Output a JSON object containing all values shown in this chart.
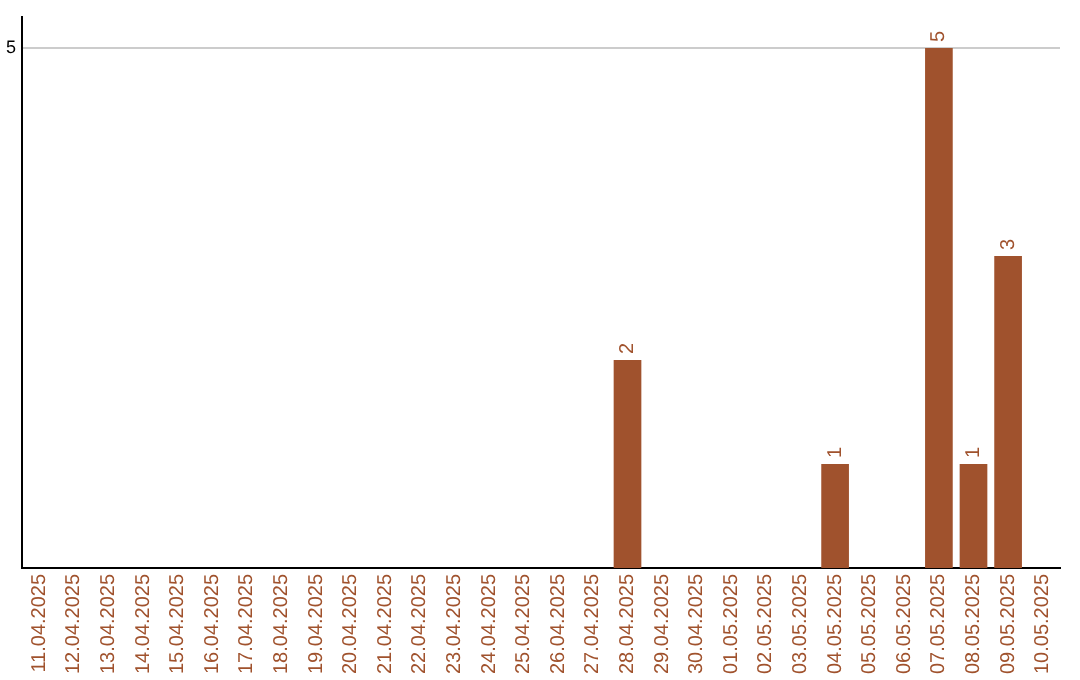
{
  "chart_data": {
    "type": "bar",
    "categories": [
      "11.04.2025",
      "12.04.2025",
      "13.04.2025",
      "14.04.2025",
      "15.04.2025",
      "16.04.2025",
      "17.04.2025",
      "18.04.2025",
      "19.04.2025",
      "20.04.2025",
      "21.04.2025",
      "22.04.2025",
      "23.04.2025",
      "24.04.2025",
      "25.04.2025",
      "26.04.2025",
      "27.04.2025",
      "28.04.2025",
      "29.04.2025",
      "30.04.2025",
      "01.05.2025",
      "02.05.2025",
      "03.05.2025",
      "04.05.2025",
      "05.05.2025",
      "06.05.2025",
      "07.05.2025",
      "08.05.2025",
      "09.05.2025",
      "10.05.2025"
    ],
    "values": [
      null,
      null,
      null,
      null,
      null,
      null,
      null,
      null,
      null,
      null,
      null,
      null,
      null,
      null,
      null,
      null,
      null,
      2,
      null,
      null,
      null,
      null,
      null,
      1,
      null,
      null,
      5,
      1,
      3,
      null
    ],
    "color": "#a0522d",
    "ylim": [
      0,
      5.3
    ],
    "yticks": [
      5
    ],
    "grid": "y",
    "legend": false,
    "data_labels": true
  }
}
